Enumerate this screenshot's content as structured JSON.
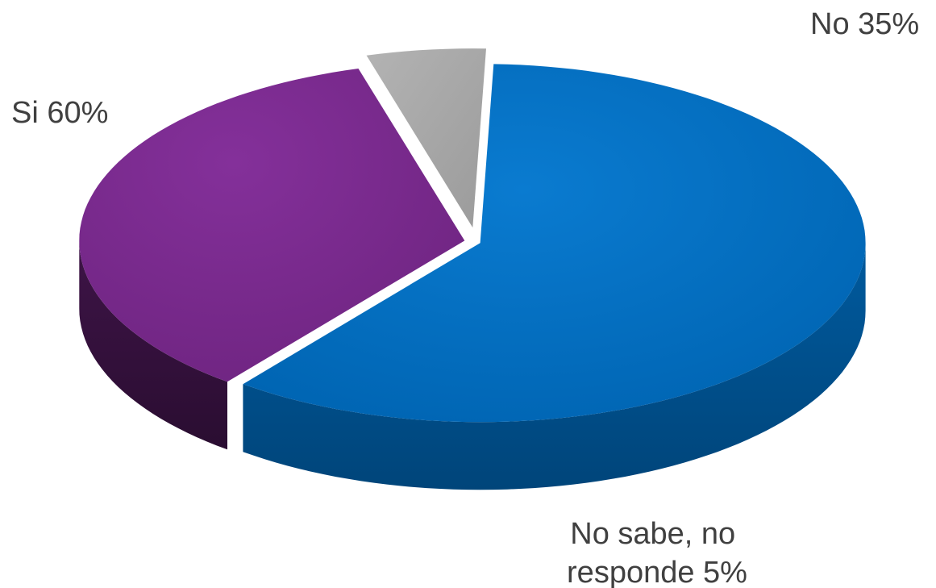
{
  "chart_data": {
    "type": "pie",
    "style": "3d-exploded",
    "title": "",
    "slices": [
      {
        "label": "Si",
        "value": 60,
        "display": "60%",
        "color": "#0070c0"
      },
      {
        "label": "No",
        "value": 35,
        "display": "35%",
        "color": "#7b2a8c"
      },
      {
        "label": "No sabe, no responde",
        "value": 5,
        "display": "5%",
        "color": "#a6a6a6"
      }
    ]
  },
  "labels": {
    "si": "Si 60%",
    "no": "No 35%",
    "ns_line1": "No sabe, no",
    "ns_line2": "responde 5%"
  }
}
